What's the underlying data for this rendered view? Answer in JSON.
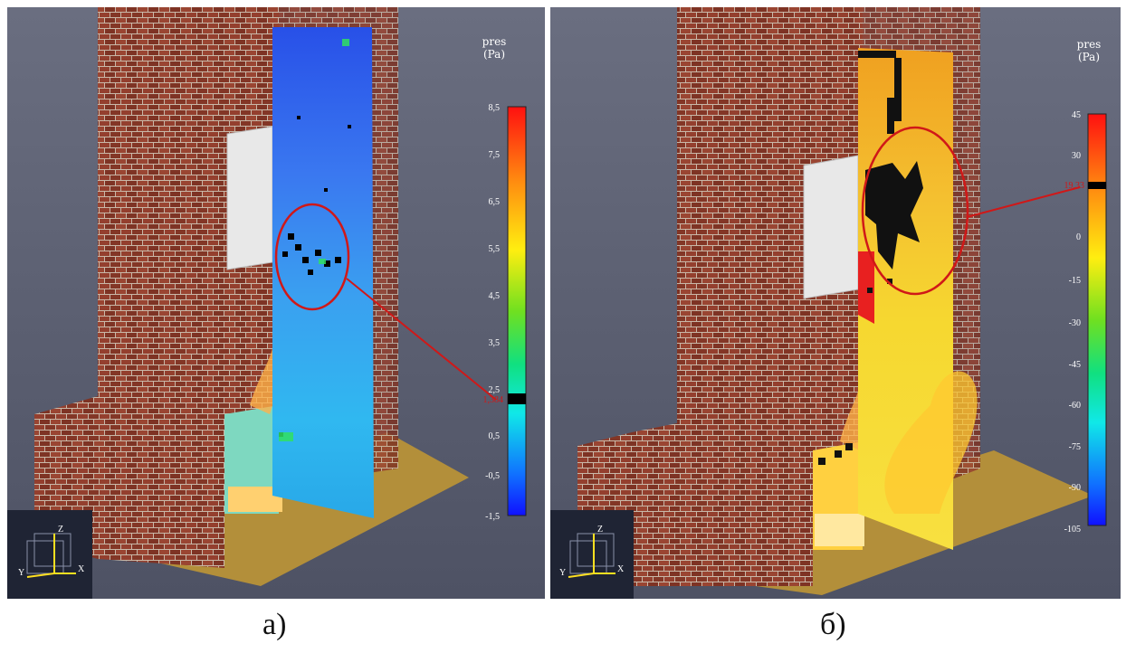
{
  "panels": [
    {
      "caption": "a)",
      "colorbar": {
        "title_line1": "pres",
        "title_line2": "(Pa)",
        "ticks": [
          "8,5",
          "7,5",
          "6,5",
          "5,5",
          "4,5",
          "3,5",
          "2,5",
          "0,5",
          "-0,5",
          "-1,5"
        ],
        "marker_label": "1,384"
      },
      "axes_gizmo": {
        "z": "Z",
        "x": "X",
        "y": "Y"
      }
    },
    {
      "caption": "б)",
      "colorbar": {
        "title_line1": "pres",
        "title_line2": "(Pa)",
        "ticks": [
          "45",
          "30",
          "0",
          "-15",
          "-30",
          "-45",
          "-60",
          "-75",
          "-90",
          "-105"
        ],
        "marker_label": "19,33"
      },
      "axes_gizmo": {
        "z": "Z",
        "x": "X",
        "y": "Y"
      }
    }
  ],
  "colors": {
    "background": "#5c6072",
    "brick": "#8a3a2a",
    "mortar": "#c9b8a8",
    "floor": "#b38f3a",
    "annotation": "#d01818"
  }
}
